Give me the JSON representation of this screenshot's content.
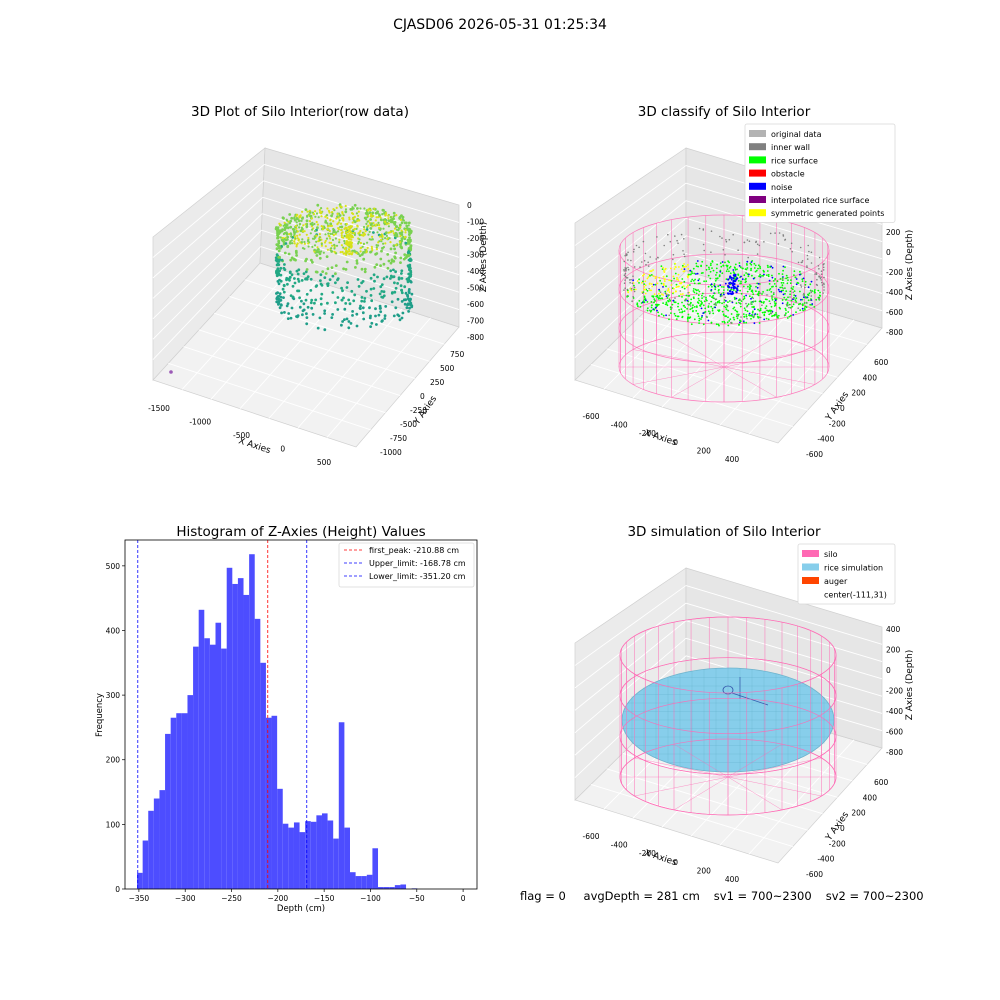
{
  "figure": {
    "title": "CJASD06 2026-05-31 01:25:34"
  },
  "footer": {
    "flag": "flag = 0",
    "avg_depth": "avgDepth = 281 cm",
    "sv1": "sv1 = 700~2300",
    "sv2": "sv2 = 700~2300"
  },
  "chart_data": [
    {
      "type": "scatter3d",
      "title": "3D Plot of Silo Interior(row data)",
      "xlabel": "X Axies",
      "ylabel": "Y Axies",
      "zlabel": "Z Axies (Depth)",
      "x_ticks": [
        "-1500",
        "-1000",
        "-500",
        "0",
        "500"
      ],
      "y_ticks": [
        "-1000",
        "-750",
        "-500",
        "-250",
        "0",
        "250",
        "500",
        "750"
      ],
      "z_ticks": [
        "0",
        "-100",
        "-200",
        "-300",
        "-400",
        "-500",
        "-600",
        "-700",
        "-800"
      ],
      "colors": {
        "high": "#d8e219",
        "mid": "#7ad151",
        "low": "#22a884",
        "outlier": "#9b59b6"
      }
    },
    {
      "type": "scatter3d",
      "title": "3D classify of Silo Interior",
      "xlabel": "X Axies",
      "ylabel": "Y Axies",
      "zlabel": "Z Axies (Depth)",
      "x_ticks": [
        "-600",
        "-400",
        "-200",
        "0",
        "200",
        "400"
      ],
      "y_ticks": [
        "-600",
        "-400",
        "-200",
        "0",
        "200",
        "400",
        "600"
      ],
      "z_ticks": [
        "200",
        "0",
        "-200",
        "-400",
        "-600",
        "-800"
      ],
      "z_top_partial": "0",
      "legend": [
        {
          "label": "original data",
          "color": "#b3b3b3"
        },
        {
          "label": "inner wall",
          "color": "#808080"
        },
        {
          "label": "rice surface",
          "color": "#00ff00"
        },
        {
          "label": "obstacle",
          "color": "#ff0000"
        },
        {
          "label": "noise",
          "color": "#0000ff"
        },
        {
          "label": "interpolated rice surface",
          "color": "#800080"
        },
        {
          "label": "symmetric generated points",
          "color": "#ffff00"
        }
      ],
      "silo_color": "#ff69b4"
    },
    {
      "type": "histogram",
      "title": "Histogram of Z-Axies (Height) Values",
      "xlabel": "Depth (cm)",
      "ylabel": "Frequency",
      "xlim": [
        -365,
        15
      ],
      "ylim": [
        0,
        540
      ],
      "x_ticks": [
        -350,
        -300,
        -250,
        -200,
        -150,
        -100,
        -50,
        0
      ],
      "y_ticks": [
        0,
        100,
        200,
        300,
        400,
        500
      ],
      "bin_start": -352,
      "bin_width": 6.05,
      "counts": [
        25,
        75,
        121,
        140,
        153,
        240,
        265,
        272,
        272,
        300,
        375,
        432,
        388,
        378,
        412,
        372,
        497,
        472,
        481,
        455,
        518,
        418,
        350,
        265,
        268,
        155,
        101,
        95,
        103,
        88,
        105,
        104,
        114,
        117,
        106,
        78,
        258,
        95,
        26,
        20,
        20,
        22,
        63,
        3,
        3,
        3,
        6,
        7,
        0,
        1
      ],
      "bar_color": "#4d4dff",
      "vlines": [
        {
          "label": "first_peak: -210.88 cm",
          "x": -210.88,
          "color": "#ff0000"
        },
        {
          "label": "Upper_limit: -168.78 cm",
          "x": -168.78,
          "color": "#0000ff"
        },
        {
          "label": "Lower_limit: -351.20 cm",
          "x": -351.2,
          "color": "#0000ff"
        }
      ]
    },
    {
      "type": "surface3d",
      "title": "3D simulation of Silo Interior",
      "xlabel": "X Axies",
      "ylabel": "Y Axies",
      "zlabel": "Z Axies (Depth)",
      "x_ticks": [
        "-600",
        "-400",
        "-200",
        "0",
        "200",
        "400"
      ],
      "y_ticks": [
        "-600",
        "-400",
        "-200",
        "0",
        "200",
        "400",
        "600"
      ],
      "z_ticks": [
        "400",
        "200",
        "0",
        "-200",
        "-400",
        "-600",
        "-800"
      ],
      "legend": [
        {
          "label": "silo",
          "color": "#ff69b4"
        },
        {
          "label": "rice simulation",
          "color": "#87ceeb"
        },
        {
          "label": "auger",
          "color": "#ff4500"
        },
        {
          "label": "center(-111,31)",
          "color": ""
        }
      ]
    }
  ]
}
